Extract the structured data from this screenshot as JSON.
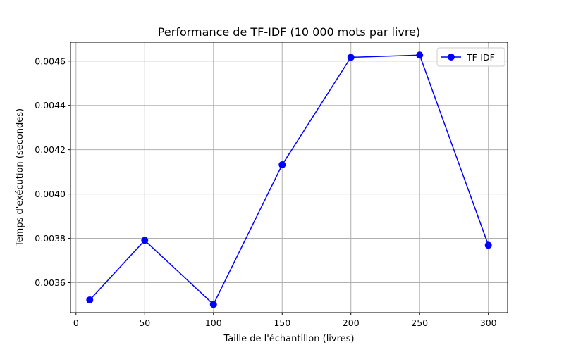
{
  "chart_data": {
    "type": "line",
    "title": "Performance de TF-IDF (10 000 mots par livre)",
    "xlabel": "Taille de l'échantillon (livres)",
    "ylabel": "Temps d'exécution (secondes)",
    "xlim": [
      -4,
      314
    ],
    "ylim": [
      0.003465,
      0.004685
    ],
    "xticks": [
      0,
      50,
      100,
      150,
      200,
      250,
      300
    ],
    "xtick_labels": [
      "0",
      "50",
      "100",
      "150",
      "200",
      "250",
      "300"
    ],
    "yticks": [
      0.0036,
      0.0038,
      0.004,
      0.0042,
      0.0044,
      0.0046
    ],
    "ytick_labels": [
      "0.0036",
      "0.0038",
      "0.0040",
      "0.0042",
      "0.0044",
      "0.0046"
    ],
    "grid": true,
    "legend_position": "top-right",
    "series": [
      {
        "name": "TF-IDF",
        "color": "#0000ff",
        "marker": "circle",
        "x": [
          10,
          50,
          100,
          150,
          200,
          250,
          300
        ],
        "y": [
          0.003522,
          0.003791,
          0.003502,
          0.004132,
          0.004617,
          0.004627,
          0.003769
        ]
      }
    ]
  }
}
